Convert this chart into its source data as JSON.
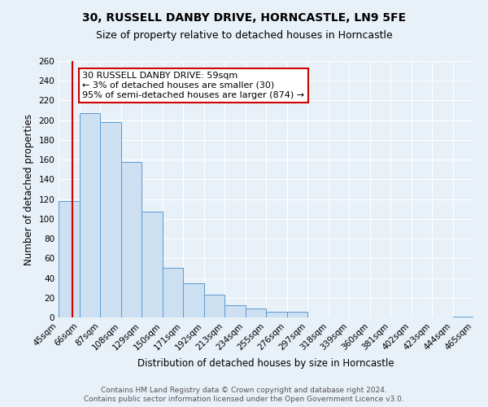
{
  "title": "30, RUSSELL DANBY DRIVE, HORNCASTLE, LN9 5FE",
  "subtitle": "Size of property relative to detached houses in Horncastle",
  "xlabel": "Distribution of detached houses by size in Horncastle",
  "ylabel": "Number of detached properties",
  "bin_labels": [
    "45sqm",
    "66sqm",
    "87sqm",
    "108sqm",
    "129sqm",
    "150sqm",
    "171sqm",
    "192sqm",
    "213sqm",
    "234sqm",
    "255sqm",
    "276sqm",
    "297sqm",
    "318sqm",
    "339sqm",
    "360sqm",
    "381sqm",
    "402sqm",
    "423sqm",
    "444sqm",
    "465sqm"
  ],
  "bin_left_edges": [
    45,
    66,
    87,
    108,
    129,
    150,
    171,
    192,
    213,
    234,
    255,
    276,
    297,
    318,
    339,
    360,
    381,
    402,
    423,
    444
  ],
  "bin_width": 21,
  "bar_heights": [
    118,
    207,
    198,
    158,
    107,
    50,
    35,
    23,
    12,
    9,
    6,
    6,
    0,
    0,
    0,
    0,
    0,
    0,
    0,
    1
  ],
  "bar_color": "#cde0f2",
  "bar_edge_color": "#5b9bd5",
  "ylim": [
    0,
    260
  ],
  "yticks": [
    0,
    20,
    40,
    60,
    80,
    100,
    120,
    140,
    160,
    180,
    200,
    220,
    240,
    260
  ],
  "xlim_left": 45,
  "xlim_right": 465,
  "red_line_x": 59,
  "annotation_text": "30 RUSSELL DANBY DRIVE: 59sqm\n← 3% of detached houses are smaller (30)\n95% of semi-detached houses are larger (874) →",
  "annotation_box_color": "#ffffff",
  "annotation_box_edge": "#cc0000",
  "red_line_color": "#cc0000",
  "footer_line1": "Contains HM Land Registry data © Crown copyright and database right 2024.",
  "footer_line2": "Contains public sector information licensed under the Open Government Licence v3.0.",
  "bg_color": "#e8f0f8",
  "grid_color": "#ffffff",
  "title_fontsize": 10,
  "subtitle_fontsize": 9,
  "axis_label_fontsize": 8.5,
  "tick_fontsize": 7.5,
  "annotation_fontsize": 8,
  "footer_fontsize": 6.5
}
